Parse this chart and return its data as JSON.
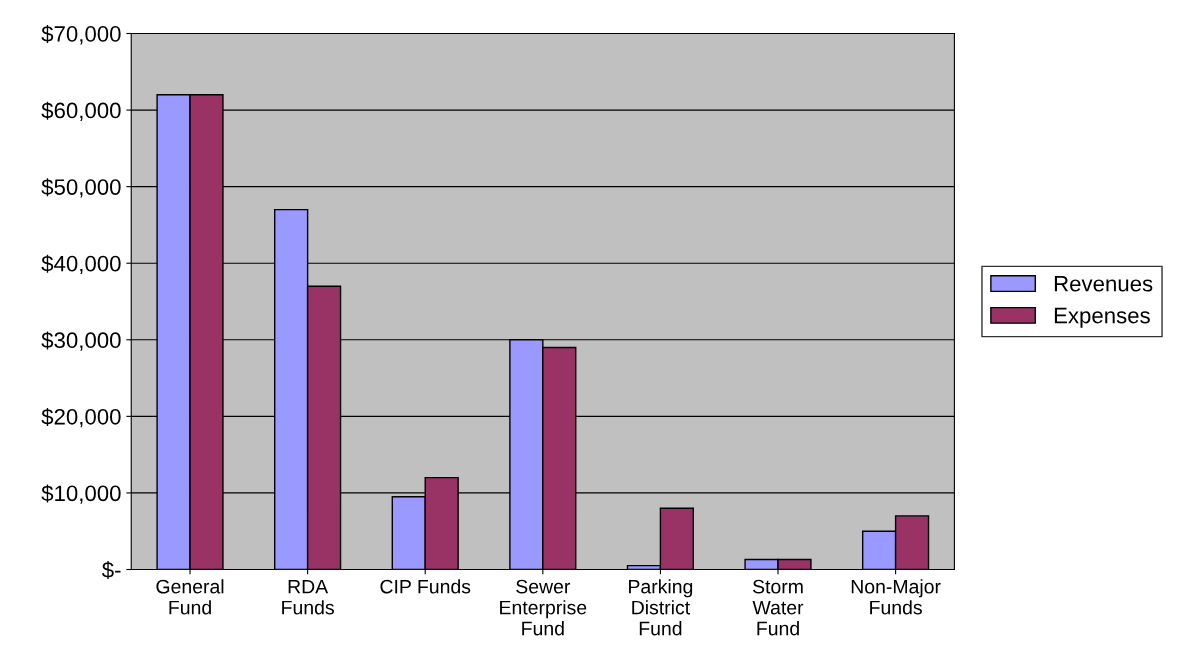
{
  "chart_data": {
    "type": "bar",
    "categories": [
      "General\nFund",
      "RDA\nFunds",
      "CIP Funds",
      "Sewer\nEnterprise\nFund",
      "Parking\nDistrict\nFund",
      "Storm\nWater\nFund",
      "Non-Major\nFunds"
    ],
    "series": [
      {
        "name": "Revenues",
        "color": "#9999ff",
        "values": [
          62000,
          47000,
          9500,
          30000,
          500,
          1300,
          5000
        ]
      },
      {
        "name": "Expenses",
        "color": "#993366",
        "values": [
          62000,
          37000,
          12000,
          29000,
          8000,
          1300,
          7000
        ]
      }
    ],
    "ylim": [
      0,
      70000
    ],
    "yticks": [
      {
        "value": 0,
        "label": "$-"
      },
      {
        "value": 10000,
        "label": "$10,000"
      },
      {
        "value": 20000,
        "label": "$20,000"
      },
      {
        "value": 30000,
        "label": "$30,000"
      },
      {
        "value": 40000,
        "label": "$40,000"
      },
      {
        "value": 50000,
        "label": "$50,000"
      },
      {
        "value": 60000,
        "label": "$60,000"
      },
      {
        "value": 70000,
        "label": "$70,000"
      }
    ],
    "grid": "y",
    "legend": "right"
  }
}
